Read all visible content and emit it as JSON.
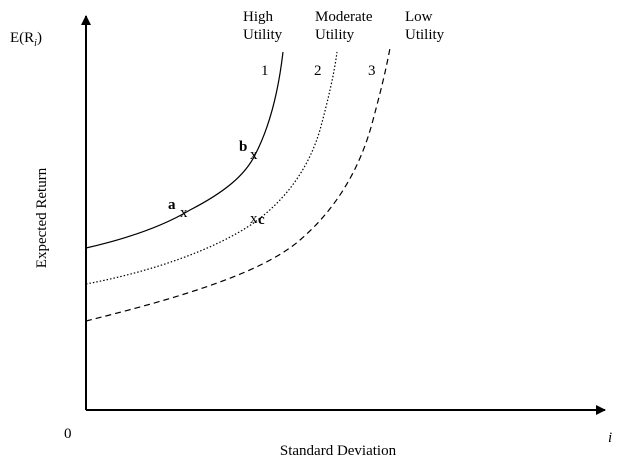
{
  "axes": {
    "y_label": {
      "prefix": "E(R",
      "subscript": "i",
      "suffix": ")"
    },
    "y_title": "Expected Return",
    "origin": "0",
    "x_title": "Standard Deviation",
    "x_subscript": "i"
  },
  "curves": [
    {
      "top": "High",
      "bottom": "Utility",
      "number": "1"
    },
    {
      "top": "Moderate",
      "bottom": "Utility",
      "number": "2"
    },
    {
      "top": "Low",
      "bottom": "Utility",
      "number": "3"
    }
  ],
  "points": [
    {
      "label": "b",
      "marker": "x"
    },
    {
      "label": "a",
      "marker": "x"
    },
    {
      "label": "c",
      "marker": "x"
    }
  ]
}
